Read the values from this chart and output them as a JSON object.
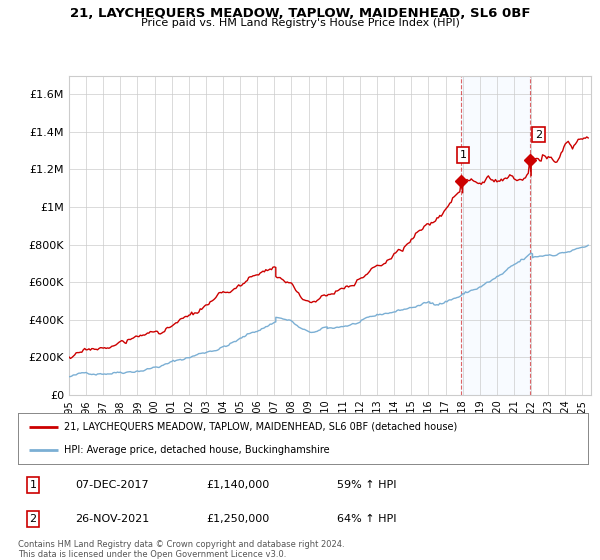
{
  "title": "21, LAYCHEQUERS MEADOW, TAPLOW, MAIDENHEAD, SL6 0BF",
  "subtitle": "Price paid vs. HM Land Registry's House Price Index (HPI)",
  "hpi_color": "#7bafd4",
  "price_color": "#cc0000",
  "marker1_year": 2017.92,
  "marker1_value": 1140000,
  "marker1_label": "1",
  "marker2_year": 2021.92,
  "marker2_value": 1250000,
  "marker2_label": "2",
  "ylim": [
    0,
    1700000
  ],
  "yticks": [
    0,
    200000,
    400000,
    600000,
    800000,
    1000000,
    1200000,
    1400000,
    1600000
  ],
  "ytick_labels": [
    "£0",
    "£200K",
    "£400K",
    "£600K",
    "£800K",
    "£1M",
    "£1.2M",
    "£1.4M",
    "£1.6M"
  ],
  "legend_line1": "21, LAYCHEQUERS MEADOW, TAPLOW, MAIDENHEAD, SL6 0BF (detached house)",
  "legend_line2": "HPI: Average price, detached house, Buckinghamshire",
  "table_row1_num": "1",
  "table_row1_date": "07-DEC-2017",
  "table_row1_price": "£1,140,000",
  "table_row1_hpi": "59% ↑ HPI",
  "table_row2_num": "2",
  "table_row2_date": "26-NOV-2021",
  "table_row2_price": "£1,250,000",
  "table_row2_hpi": "64% ↑ HPI",
  "footer": "Contains HM Land Registry data © Crown copyright and database right 2024.\nThis data is licensed under the Open Government Licence v3.0.",
  "bg_color": "#ffffff",
  "grid_color": "#cccccc",
  "shaded_color": "#ddeeff",
  "xlim_start": 1995.0,
  "xlim_end": 2025.5,
  "xtick_years": [
    1995,
    1996,
    1997,
    1998,
    1999,
    2000,
    2001,
    2002,
    2003,
    2004,
    2005,
    2006,
    2007,
    2008,
    2009,
    2010,
    2011,
    2012,
    2013,
    2014,
    2015,
    2016,
    2017,
    2018,
    2019,
    2020,
    2021,
    2022,
    2023,
    2024,
    2025
  ]
}
